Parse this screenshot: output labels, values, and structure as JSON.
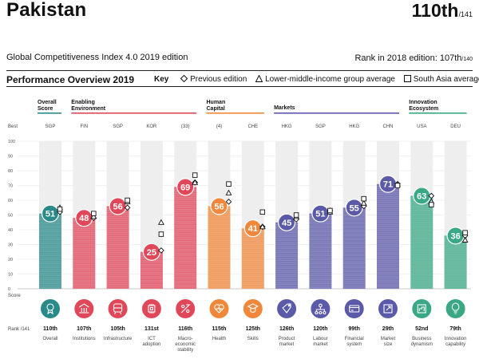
{
  "header": {
    "country": "Pakistan",
    "rank": "110th",
    "rank_of": "/141",
    "edition": "Global Competitiveness Index 4.0 2019 edition",
    "rank_2018_label": "Rank in 2018 edition: 107th",
    "rank_2018_of": "/140",
    "section_title": "Performance Overview 2019"
  },
  "legend": {
    "key": "Key",
    "previous": "Previous edition",
    "group_avg": "Lower-middle-income group average",
    "region_avg": "South Asia average"
  },
  "colors": {
    "overall": "#2a8a8a",
    "enabling": "#e0485a",
    "human": "#f0873a",
    "markets": "#5b5aa8",
    "innovation": "#3aa884"
  },
  "chart_data": {
    "type": "bar",
    "title": "Performance Overview 2019",
    "ylim": [
      0,
      100
    ],
    "y_ticks": [
      0,
      10,
      20,
      30,
      40,
      50,
      60,
      70,
      80,
      90,
      100
    ],
    "y_axis_top_label": "Best",
    "y_axis_bottom_label": "Score",
    "rank_label": "Rank /141",
    "groups": [
      {
        "name": "Overall Score",
        "color_key": "overall",
        "start": 0,
        "end": 0
      },
      {
        "name": "Enabling Environment",
        "color_key": "enabling",
        "start": 1,
        "end": 4
      },
      {
        "name": "Human Capital",
        "color_key": "human",
        "start": 5,
        "end": 6
      },
      {
        "name": "Markets",
        "color_key": "markets",
        "start": 7,
        "end": 10
      },
      {
        "name": "Innovation Ecosystem",
        "color_key": "innovation",
        "start": 11,
        "end": 12
      }
    ],
    "categories": [
      "Overall",
      "Institutions",
      "Infrastructure",
      "ICT adoption",
      "Macro-economic stability",
      "Health",
      "Skills",
      "Product market",
      "Labour market",
      "Financial system",
      "Market size",
      "Business dynamism",
      "Innovation capability"
    ],
    "category_lines": [
      [
        "Overall"
      ],
      [
        "Institutions"
      ],
      [
        "Infrastructure"
      ],
      [
        "ICT",
        "adoption"
      ],
      [
        "Macro-",
        "economic",
        "stability"
      ],
      [
        "Health"
      ],
      [
        "Skills"
      ],
      [
        "Product",
        "market"
      ],
      [
        "Labour",
        "market"
      ],
      [
        "Financial",
        "system"
      ],
      [
        "Market",
        "size"
      ],
      [
        "Business",
        "dynamism"
      ],
      [
        "Innovation",
        "capability"
      ]
    ],
    "best": [
      "SGP",
      "FIN",
      "SGP",
      "KOR",
      "(33)",
      "(4)",
      "CHE",
      "HKG",
      "SGP",
      "HKG",
      "CHN",
      "USA",
      "DEU"
    ],
    "ranks": [
      "110th",
      "107th",
      "105th",
      "131st",
      "116th",
      "115th",
      "125th",
      "126th",
      "120th",
      "99th",
      "29th",
      "52nd",
      "79th"
    ],
    "values": [
      51,
      48,
      56,
      25,
      69,
      56,
      41,
      45,
      51,
      55,
      71,
      63,
      36
    ],
    "series": [
      {
        "name": "Previous edition",
        "values": [
          52,
          48,
          55,
          26,
          72,
          59,
          42,
          47,
          53,
          56,
          71,
          63,
          36
        ]
      },
      {
        "name": "Lower-middle-income group average",
        "values": [
          55,
          49,
          59,
          45,
          72,
          65,
          42,
          49,
          52,
          58,
          71,
          59,
          33
        ]
      },
      {
        "name": "South Asia average",
        "values": [
          54,
          51,
          60,
          37,
          77,
          71,
          52,
          50,
          53,
          61,
          70,
          57,
          38
        ]
      }
    ]
  },
  "icon_names": [
    "medal-icon",
    "institution-icon",
    "infrastructure-icon",
    "chip-icon",
    "percent-icon",
    "heartbeat-icon",
    "graduation-icon",
    "tag-icon",
    "org-chart-icon",
    "credit-card-icon",
    "expand-icon",
    "growth-icon",
    "lightbulb-icon"
  ]
}
